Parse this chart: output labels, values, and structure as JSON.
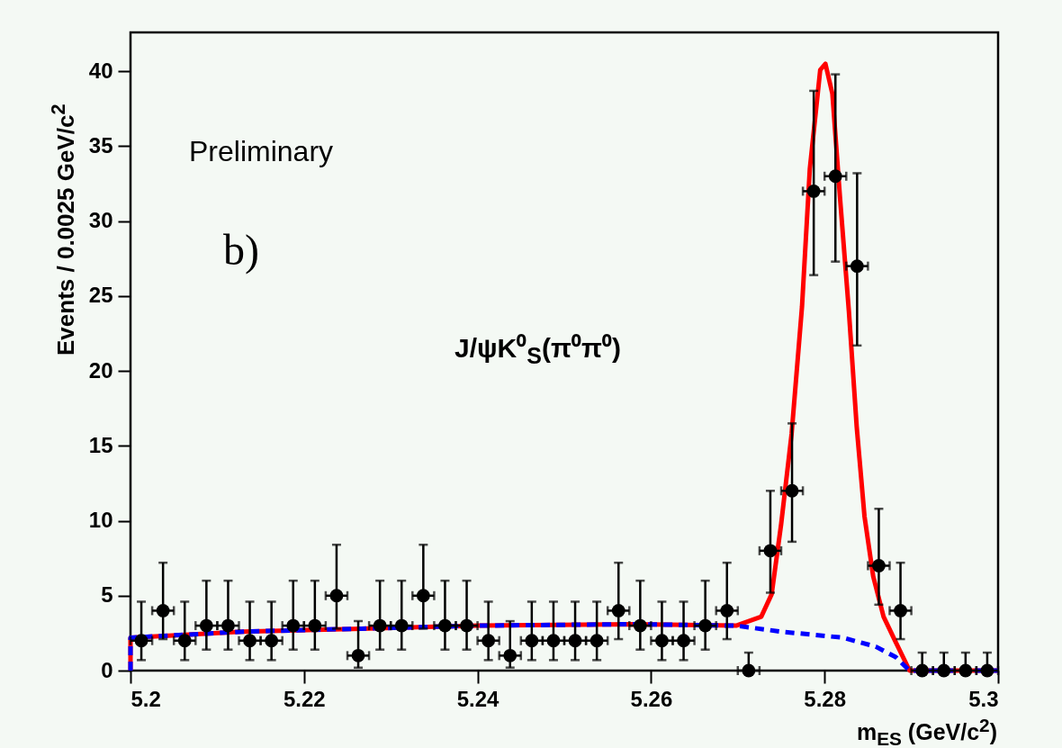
{
  "chart_data": {
    "type": "scatter",
    "xlabel": "m$_{ES}$ (GeV/c$^{2}$)",
    "ylabel": "Events / 0.0025 GeV/c$^{2}$",
    "annotations": [
      "Preliminary",
      "b)",
      "J/ψK⁰$_{S}$(π⁰π⁰)"
    ],
    "xlim": [
      5.2,
      5.3
    ],
    "xticks": [
      5.2,
      5.22,
      5.24,
      5.26,
      5.28,
      5.3
    ],
    "ylim": [
      0,
      42.6
    ],
    "yticks": [
      0,
      5,
      10,
      15,
      20,
      25,
      30,
      35,
      40
    ],
    "series": [
      {
        "type": "line",
        "color": "#ff0000",
        "line_style": "solid",
        "x": [
          5.2,
          5.2,
          5.213,
          5.2266,
          5.24,
          5.258,
          5.2698,
          5.2727,
          5.2739,
          5.275,
          5.2762,
          5.2774,
          5.2783,
          5.2795,
          5.2801,
          5.2809,
          5.2818,
          5.2828,
          5.2837,
          5.2846,
          5.2856,
          5.2868,
          5.2882,
          5.2898,
          5.3
        ],
        "values": [
          0,
          2.2,
          2.6,
          2.8,
          3.0,
          3.1,
          3.0,
          3.6,
          5.1,
          9.8,
          15.8,
          24.3,
          33.5,
          40.1,
          40.5,
          38.5,
          31.4,
          24.0,
          16.3,
          10.3,
          6.3,
          3.6,
          1.9,
          0,
          0
        ]
      },
      {
        "type": "line",
        "color": "#0000ff",
        "line_style": "dashed",
        "x": [
          5.2,
          5.2,
          5.213,
          5.2266,
          5.24,
          5.258,
          5.2698,
          5.275,
          5.2821,
          5.2859,
          5.2882,
          5.2898,
          5.3
        ],
        "values": [
          0,
          2.2,
          2.6,
          2.8,
          3.0,
          3.1,
          3.0,
          2.6,
          2.2,
          1.6,
          0.9,
          0,
          0
        ]
      },
      {
        "color": "#000000",
        "marker": "circle",
        "x": [
          5.20125,
          5.20375,
          5.20625,
          5.20875,
          5.21125,
          5.21375,
          5.21625,
          5.21875,
          5.22125,
          5.22375,
          5.22625,
          5.22875,
          5.23125,
          5.23375,
          5.23625,
          5.23875,
          5.24125,
          5.24375,
          5.24625,
          5.24875,
          5.25125,
          5.25375,
          5.25625,
          5.25875,
          5.26125,
          5.26375,
          5.26625,
          5.26875,
          5.27125,
          5.27375,
          5.27625,
          5.27875,
          5.28125,
          5.28375,
          5.28625,
          5.28875,
          5.29125,
          5.29375,
          5.29625,
          5.29875
        ],
        "values": [
          2,
          4,
          2,
          3,
          3,
          2,
          2,
          3,
          3,
          5,
          1,
          3,
          3,
          5,
          3,
          3,
          2,
          1,
          2,
          2,
          2,
          2,
          4,
          3,
          2,
          2,
          3,
          4,
          0,
          8,
          12,
          32,
          33,
          27,
          7,
          4,
          0,
          0,
          0,
          0
        ],
        "errors": [
          [
            0.7,
            4.6
          ],
          [
            2.1,
            7.2
          ],
          [
            0.7,
            4.6
          ],
          [
            1.4,
            6.0
          ],
          [
            1.4,
            6.0
          ],
          [
            0.7,
            4.6
          ],
          [
            0.7,
            4.6
          ],
          [
            1.4,
            6.0
          ],
          [
            1.4,
            6.0
          ],
          [
            2.8,
            8.4
          ],
          [
            0.2,
            3.3
          ],
          [
            1.4,
            6.0
          ],
          [
            1.4,
            6.0
          ],
          [
            2.8,
            8.4
          ],
          [
            1.4,
            6.0
          ],
          [
            1.4,
            6.0
          ],
          [
            0.7,
            4.6
          ],
          [
            0.2,
            3.3
          ],
          [
            0.7,
            4.6
          ],
          [
            0.7,
            4.6
          ],
          [
            0.7,
            4.6
          ],
          [
            0.7,
            4.6
          ],
          [
            2.1,
            7.2
          ],
          [
            1.4,
            6.0
          ],
          [
            0.7,
            4.6
          ],
          [
            0.7,
            4.6
          ],
          [
            1.4,
            6.0
          ],
          [
            2.1,
            7.2
          ],
          [
            0,
            1.2
          ],
          [
            5.2,
            12.0
          ],
          [
            8.6,
            16.5
          ],
          [
            26.4,
            38.7
          ],
          [
            27.3,
            39.8
          ],
          [
            21.7,
            33.2
          ],
          [
            4.4,
            10.8
          ],
          [
            2.1,
            7.2
          ],
          [
            0,
            1.2
          ],
          [
            0,
            1.2
          ],
          [
            0,
            1.2
          ],
          [
            0,
            1.2
          ]
        ],
        "xerrors": [
          0.00125,
          0.00125,
          0.00125,
          0.00125,
          0.00125,
          0.00125,
          0.00125,
          0.00125,
          0.00125,
          0.00125,
          0.00125,
          0.00125,
          0.00125,
          0.00125,
          0.00125,
          0.00125,
          0.00125,
          0.00125,
          0.00125,
          0.00125,
          0.00125,
          0.00125,
          0.00125,
          0.00125,
          0.00125,
          0.00125,
          0.00125,
          0.00125,
          0.00125,
          0.00125,
          0.00125,
          0.00125,
          0.00125,
          0.00125,
          0.00125,
          0.00125,
          0.00125,
          0.00125,
          0.00125,
          0.00125
        ]
      }
    ]
  }
}
